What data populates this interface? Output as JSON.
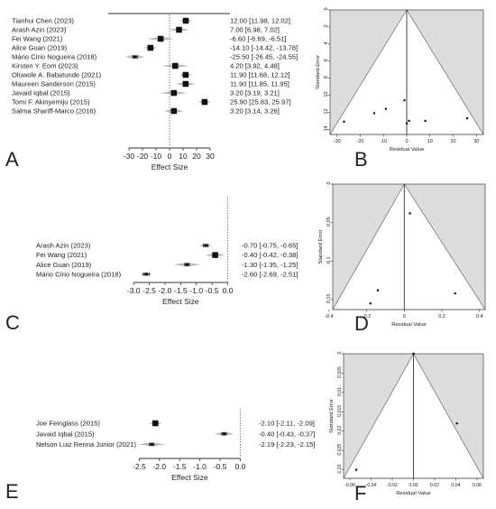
{
  "chart_data": [
    {
      "panel": "A",
      "type": "forest",
      "xlabel": "Effect Size",
      "xticks": [
        -30,
        -20,
        -10,
        0,
        10,
        20,
        30
      ],
      "xlim": [
        -32,
        32
      ],
      "studies": [
        {
          "label": "Tianhui Chen (2023)",
          "est": 12.0,
          "lo": 11.98,
          "hi": 12.02,
          "text": "12.00 [11.98, 12.02]"
        },
        {
          "label": "Arash Azin (2023)",
          "est": 7.0,
          "lo": 6.98,
          "hi": 7.02,
          "text": "7.00 [6.98, 7.02]"
        },
        {
          "label": "Fei Wang (2021)",
          "est": -6.6,
          "lo": -6.69,
          "hi": -6.51,
          "text": "-6.60 [-6.69, -6.51]"
        },
        {
          "label": "Alice Guan (2019)",
          "est": -14.1,
          "lo": -14.42,
          "hi": -13.78,
          "text": "-14.10 [-14.42, -13.78]"
        },
        {
          "label": "Mário Círio Nogueira (2018)",
          "est": -25.5,
          "lo": -26.45,
          "hi": -24.55,
          "text": "-25.50 [-26.45, -24.55]"
        },
        {
          "label": "Kirsten Y. Eom (2023)",
          "est": 4.2,
          "lo": 3.92,
          "hi": 4.48,
          "text": "4.20 [3.92, 4.48]"
        },
        {
          "label": "Oluwole A. Babatunde (2021)",
          "est": 11.9,
          "lo": 11.68,
          "hi": 12.12,
          "text": "11.90 [11.68, 12.12]"
        },
        {
          "label": "Maureen Sanderson (2015)",
          "est": 11.9,
          "lo": 11.85,
          "hi": 11.95,
          "text": "11.90 [11.85, 11.95]"
        },
        {
          "label": "Javaid Iqbal (2015)",
          "est": 3.2,
          "lo": 3.19,
          "hi": 3.21,
          "text": "3.20 [3.19, 3.21]"
        },
        {
          "label": "Tomi F. Akinyemiju (2015)",
          "est": 25.9,
          "lo": 25.83,
          "hi": 25.97,
          "text": "25.90 [25.83, 25.97]"
        },
        {
          "label": "Salma Shariff-Marco (2016)",
          "est": 3.2,
          "lo": 3.14,
          "hi": 3.26,
          "text": "3.20 [3.14, 3.26]"
        }
      ]
    },
    {
      "panel": "B",
      "type": "funnel",
      "xlabel": "Residual Value",
      "ylabel": "Standard Error",
      "xticks": [
        -30,
        -20,
        -10,
        0,
        10,
        20,
        30
      ],
      "yticks": [
        0,
        2,
        4,
        6,
        8,
        10,
        12,
        14
      ],
      "xlim": [
        -33,
        33
      ],
      "ylim": [
        0,
        14.6
      ],
      "points": [
        {
          "x": -27,
          "y": 13.1
        },
        {
          "x": -14,
          "y": 12.1
        },
        {
          "x": -9,
          "y": 11.6
        },
        {
          "x": -1,
          "y": 10.6
        },
        {
          "x": 0,
          "y": 13.3
        },
        {
          "x": 1,
          "y": 13.0
        },
        {
          "x": 8,
          "y": 13.0
        },
        {
          "x": 26,
          "y": 12.7
        }
      ]
    },
    {
      "panel": "C",
      "type": "forest",
      "xlabel": "Effect Size",
      "xticks": [
        -3.0,
        -2.5,
        -2.0,
        -1.5,
        -1.0,
        -0.5,
        0.0
      ],
      "xticklabels": [
        "-3.0",
        "-2.5",
        "-2.0",
        "-1.5",
        "-1.0",
        "-0.5",
        "0.0"
      ],
      "xlim": [
        -3.15,
        0.1
      ],
      "studies": [
        {
          "label": "Arash Azin (2023)",
          "est": -0.7,
          "lo": -0.75,
          "hi": -0.65,
          "text": "-0.70 [-0.75, -0.65]"
        },
        {
          "label": "Fei Wang (2021)",
          "est": -0.4,
          "lo": -0.42,
          "hi": -0.38,
          "text": "-0.40 [-0.42, -0.38]"
        },
        {
          "label": "Alice Guan (2019)",
          "est": -1.3,
          "lo": -1.35,
          "hi": -1.25,
          "text": "-1.30 [-1.35, -1.25]"
        },
        {
          "label": "Mário Círio Nogueira (2018)",
          "est": -2.6,
          "lo": -2.69,
          "hi": -2.51,
          "text": "-2.60 [-2.69, -2.51]"
        }
      ]
    },
    {
      "panel": "D",
      "type": "funnel",
      "xlabel": "Residual Value",
      "ylabel": "Standard Error",
      "xticks": [
        -0.4,
        -0.2,
        0,
        0.2,
        0.4
      ],
      "xticklabels": [
        "-0.4",
        "-0.2",
        "0",
        "0.2",
        "0.4"
      ],
      "yticks": [
        0,
        0.05,
        0.1,
        0.15
      ],
      "yticklabels": [
        "0",
        "0.05",
        "0.1",
        "0.15"
      ],
      "xlim": [
        -0.38,
        0.43
      ],
      "ylim": [
        0,
        0.163
      ],
      "points": [
        {
          "x": 0.03,
          "y": 0.038
        },
        {
          "x": -0.14,
          "y": 0.138
        },
        {
          "x": -0.18,
          "y": 0.155
        },
        {
          "x": 0.27,
          "y": 0.142
        }
      ]
    },
    {
      "panel": "E",
      "type": "forest",
      "xlabel": "Effect Size",
      "xticks": [
        -2.5,
        -2.0,
        -1.5,
        -1.0,
        -0.5,
        0.0
      ],
      "xticklabels": [
        "-2.5",
        "-2.0",
        "-1.5",
        "-1.0",
        "-0.5",
        "0.0"
      ],
      "xlim": [
        -2.62,
        0.08
      ],
      "studies": [
        {
          "label": "Joe Feinglass (2015)",
          "est": -2.1,
          "lo": -2.11,
          "hi": -2.09,
          "text": "-2.10 [-2.11, -2.09]"
        },
        {
          "label": "Javaid Iqbal (2015)",
          "est": -0.4,
          "lo": -0.43,
          "hi": -0.37,
          "text": "-0.40 [-0.43, -0.37]"
        },
        {
          "label": "Nelson Luiz Renna Junior (2021)",
          "est": -2.19,
          "lo": -2.23,
          "hi": -2.15,
          "text": "-2.19 [-2.23, -2.15]"
        }
      ]
    },
    {
      "panel": "F",
      "type": "funnel",
      "xlabel": "Residual Value",
      "ylabel": "Standard Error",
      "xticks": [
        -0.06,
        -0.04,
        -0.02,
        0,
        0.02,
        0.04,
        0.06
      ],
      "xticklabels": [
        "-0.06",
        "-0.04",
        "-0.02",
        "0.00",
        "0.02",
        "0.04",
        "0.06"
      ],
      "yticks": [
        0,
        0.005,
        0.01,
        0.015,
        0.02,
        0.025,
        0.03
      ],
      "yticklabels": [
        "0",
        "0.005",
        "0.01",
        "0.015",
        "0.02",
        "0.025",
        "0.03"
      ],
      "xlim": [
        -0.066,
        0.066
      ],
      "ylim": [
        0,
        0.0322
      ],
      "points": [
        {
          "x": 0.0,
          "y": 0.0
        },
        {
          "x": -0.054,
          "y": 0.03
        },
        {
          "x": 0.041,
          "y": 0.018
        }
      ]
    }
  ],
  "panel_letters": [
    "A",
    "B",
    "C",
    "D",
    "E",
    "F"
  ],
  "colors": {
    "funnel_fill": "#dcdcdc",
    "marker": "#111111",
    "diamond": "#a9a9a9",
    "axis": "#333333"
  }
}
